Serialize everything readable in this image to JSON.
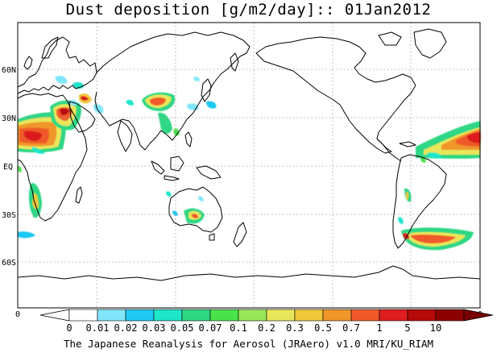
{
  "title": "Dust deposition [g/m2/day]:: 01Jan2012",
  "footer": "The Japanese Reanalysis for Aerosol (JRAero) v1.0 MRI/KU_RIAM",
  "lat_labels": [
    "60N",
    "30N",
    "EQ",
    "30S",
    "60S"
  ],
  "edge_labels": {
    "left": "0",
    "right": "0"
  },
  "colorbar": {
    "labels": [
      "0",
      "0.01",
      "0.02",
      "0.03",
      "0.05",
      "0.07",
      "0.1",
      "0.2",
      "0.3",
      "0.5",
      "0.7",
      "1",
      "5",
      "10"
    ],
    "colors": [
      "#ffffff",
      "#ffffff",
      "#82e6fa",
      "#1fc8f0",
      "#1ee6c8",
      "#2fd784",
      "#4ae24a",
      "#9ae65a",
      "#e8e65a",
      "#f0c83c",
      "#f0962a",
      "#f05a2a",
      "#dc1e1e",
      "#b40a0a",
      "#8c0000",
      "#780000"
    ]
  },
  "colors": {
    "coast": "#000000",
    "grid": "#9a9a9a",
    "frame": "#000000"
  }
}
